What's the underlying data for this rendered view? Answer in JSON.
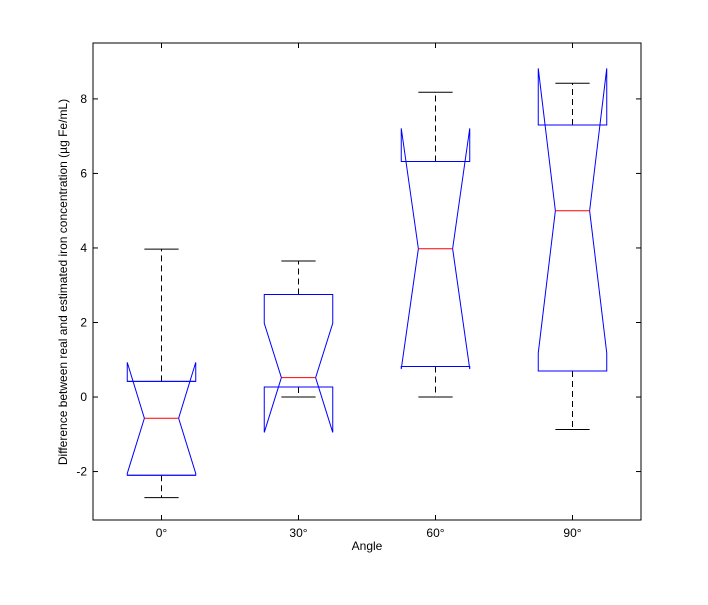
{
  "chart_data": {
    "type": "boxplot",
    "xlabel": "Angle",
    "ylabel": "Difference between real and estimated iron concentration (µg Fe/mL)",
    "ylim": [
      -3.3,
      9.5
    ],
    "yticks": [
      -2,
      0,
      2,
      4,
      6,
      8
    ],
    "grid": false,
    "notched": true,
    "colors": {
      "box": "#0000ff",
      "median": "#ff0000",
      "whisker": "#000000",
      "axes": "#000000"
    },
    "categories": [
      "0°",
      "30°",
      "60°",
      "90°"
    ],
    "boxes": [
      {
        "label": "0°",
        "whisker_low": -2.7,
        "q1": -2.1,
        "median": -0.57,
        "q3": 0.42,
        "whisker_high": 3.97,
        "notch_low": -2.05,
        "notch_high": 0.93
      },
      {
        "label": "30°",
        "whisker_low": 0.0,
        "q1": 0.27,
        "median": 0.52,
        "q3": 2.75,
        "whisker_high": 3.65,
        "notch_low": -0.95,
        "notch_high": 1.98
      },
      {
        "label": "60°",
        "whisker_low": 0.0,
        "q1": 0.82,
        "median": 3.98,
        "q3": 6.32,
        "whisker_high": 8.18,
        "notch_low": 0.75,
        "notch_high": 7.21
      },
      {
        "label": "90°",
        "whisker_low": -0.87,
        "q1": 0.7,
        "median": 5.0,
        "q3": 7.3,
        "whisker_high": 8.42,
        "notch_low": 1.18,
        "notch_high": 8.82
      }
    ]
  }
}
